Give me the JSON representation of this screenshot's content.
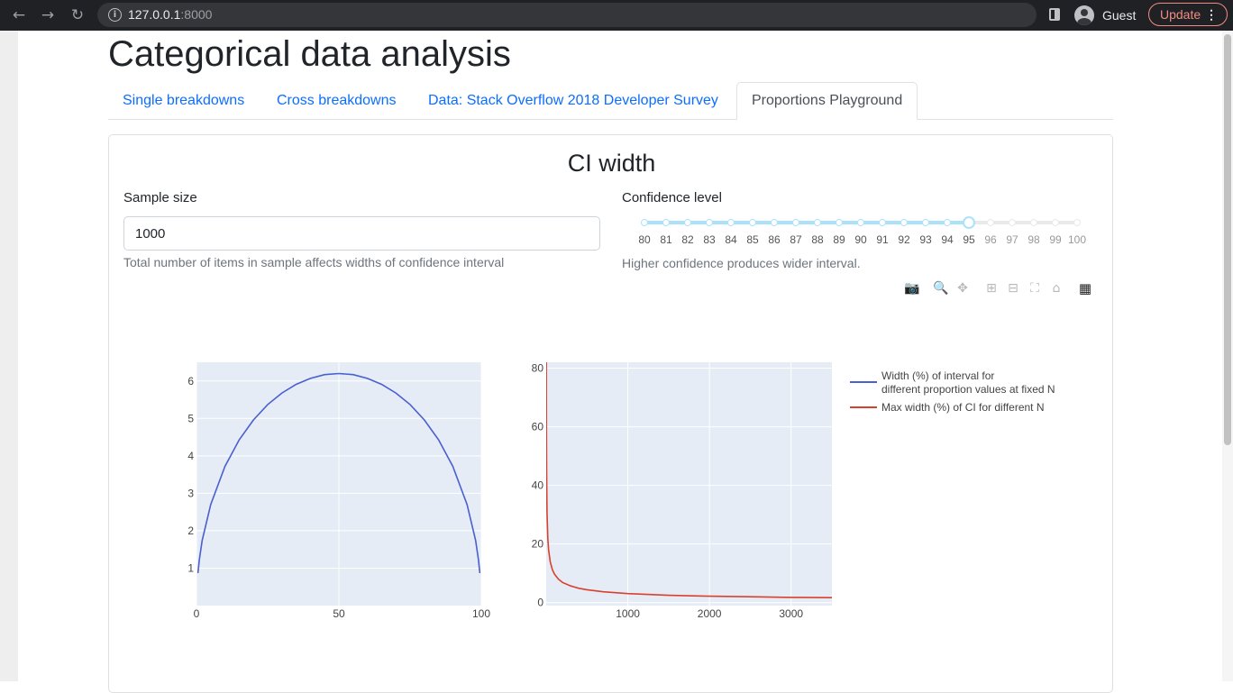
{
  "browser": {
    "url_host": "127.0.0.1",
    "url_port": ":8000",
    "profile_label": "Guest",
    "update_label": "Update",
    "menu_glyph": "⋮"
  },
  "page": {
    "title": "Categorical data analysis",
    "tabs": [
      {
        "label": "Single breakdowns",
        "active": false
      },
      {
        "label": "Cross breakdowns",
        "active": false
      },
      {
        "label": "Data: Stack Overflow 2018 Developer Survey",
        "active": false
      },
      {
        "label": "Proportions Playground",
        "active": true
      }
    ]
  },
  "card": {
    "title": "CI width",
    "sample_size": {
      "label": "Sample size",
      "value": "1000",
      "help": "Total number of items in sample affects widths of confidence interval"
    },
    "confidence": {
      "label": "Confidence level",
      "min": 80,
      "max": 100,
      "value": 95,
      "marks": [
        "80",
        "81",
        "82",
        "83",
        "84",
        "85",
        "86",
        "87",
        "88",
        "89",
        "90",
        "91",
        "92",
        "93",
        "94",
        "95",
        "96",
        "97",
        "98",
        "99",
        "100"
      ],
      "help": "Higher confidence produces wider interval."
    }
  },
  "modebar_icons": [
    "camera-icon",
    "zoom-icon",
    "pan-icon",
    "zoom-in-icon",
    "zoom-out-icon",
    "autoscale-icon",
    "reset-axes-icon",
    "plotly-logo-icon"
  ],
  "colors": {
    "series_width": "#4a5fd0",
    "series_max": "#d9412e",
    "plot_bg": "#e5ecf6",
    "link": "#0d6efd"
  },
  "chart_data": [
    {
      "type": "line",
      "title": "",
      "xlabel": "",
      "ylabel": "",
      "xlim": [
        0,
        100
      ],
      "ylim": [
        0,
        6.5
      ],
      "x_ticks": [
        "0",
        "50",
        "100"
      ],
      "y_ticks": [
        "1",
        "2",
        "3",
        "4",
        "5",
        "6"
      ],
      "grid": true,
      "series": [
        {
          "name": "Width (%) of interval for different proportion values at fixed N",
          "color": "#4a5fd0",
          "x": [
            0.5,
            1,
            2,
            5,
            10,
            15,
            20,
            25,
            30,
            35,
            40,
            45,
            50,
            55,
            60,
            65,
            70,
            75,
            80,
            85,
            90,
            95,
            98,
            99,
            99.5
          ],
          "y": [
            0.87,
            1.23,
            1.74,
            2.7,
            3.72,
            4.43,
            4.96,
            5.37,
            5.68,
            5.91,
            6.07,
            6.17,
            6.2,
            6.17,
            6.07,
            5.91,
            5.68,
            5.37,
            4.96,
            4.43,
            3.72,
            2.7,
            1.74,
            1.23,
            0.87
          ]
        }
      ]
    },
    {
      "type": "line",
      "title": "",
      "xlabel": "",
      "ylabel": "",
      "xlim": [
        0,
        3500
      ],
      "ylim": [
        -1,
        82
      ],
      "x_ticks": [
        "1000",
        "2000",
        "3000"
      ],
      "y_ticks": [
        "0",
        "20",
        "40",
        "60",
        "80"
      ],
      "grid": true,
      "legend_placement": "right",
      "series": [
        {
          "name": "Max width (%) of CI for different N",
          "color": "#d9412e",
          "x": [
            1,
            2,
            3,
            5,
            10,
            20,
            30,
            50,
            75,
            100,
            150,
            200,
            300,
            400,
            500,
            700,
            1000,
            1500,
            2000,
            2500,
            3000,
            3500
          ],
          "y": [
            98,
            69.3,
            56.6,
            43.8,
            31.0,
            21.9,
            17.9,
            13.9,
            11.3,
            9.8,
            8.0,
            6.9,
            5.7,
            4.9,
            4.4,
            3.7,
            3.1,
            2.5,
            2.2,
            2.0,
            1.8,
            1.7
          ]
        }
      ]
    }
  ]
}
